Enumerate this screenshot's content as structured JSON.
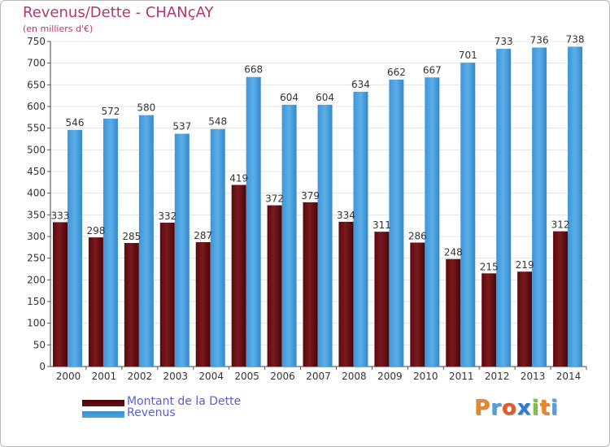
{
  "title": "Revenus/Dette - CHANçAY",
  "subtitle": "(en milliers d'€)",
  "legend": [
    {
      "label": "Montant de la Dette",
      "color": "#6b0f12"
    },
    {
      "label": "Revenus",
      "color": "#4ea2e0"
    }
  ],
  "logo": "Proxiti",
  "colors": {
    "title": "#b03a6a",
    "legend_text": "#5b5bd6",
    "debt": "#6b0f12",
    "revenue": "#4ea2e0",
    "grid": "#e3e3e3"
  },
  "chart_data": {
    "type": "bar",
    "categories": [
      "2000",
      "2001",
      "2002",
      "2003",
      "2004",
      "2005",
      "2006",
      "2007",
      "2008",
      "2009",
      "2010",
      "2011",
      "2012",
      "2013",
      "2014"
    ],
    "series": [
      {
        "name": "Montant de la Dette",
        "values": [
          333,
          298,
          285,
          332,
          287,
          419,
          372,
          379,
          334,
          311,
          286,
          248,
          215,
          219,
          312
        ]
      },
      {
        "name": "Revenus",
        "values": [
          546,
          572,
          580,
          537,
          548,
          668,
          604,
          604,
          634,
          662,
          667,
          701,
          733,
          736,
          738
        ]
      }
    ],
    "ylim": [
      0,
      750
    ],
    "yticks": [
      0,
      50,
      100,
      150,
      200,
      250,
      300,
      350,
      400,
      450,
      500,
      550,
      600,
      650,
      700,
      750
    ],
    "grid": true,
    "legend_position": "bottom-left"
  }
}
